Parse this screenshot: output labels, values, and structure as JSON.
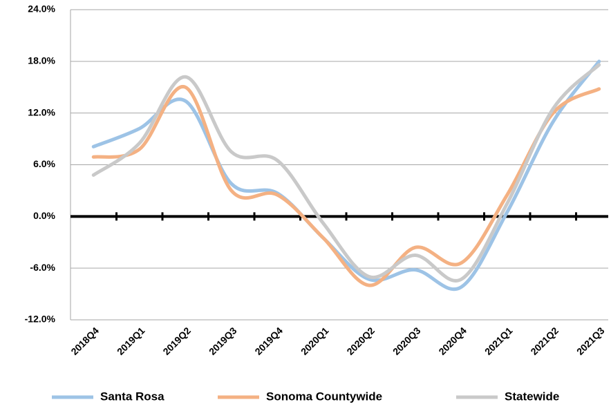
{
  "chart_data": {
    "type": "line",
    "categories": [
      "2018Q4",
      "2019Q1",
      "2019Q2",
      "2019Q3",
      "2019Q4",
      "2020Q1",
      "2020Q2",
      "2020Q3",
      "2020Q4",
      "2021Q1",
      "2021Q2",
      "2021Q3"
    ],
    "series": [
      {
        "name": "Santa Rosa",
        "color": "#9dc3e6",
        "values": [
          8.1,
          10.2,
          13.4,
          3.8,
          2.7,
          -2.5,
          -7.3,
          -6.2,
          -8.2,
          0.5,
          11.0,
          18.0
        ]
      },
      {
        "name": "Sonoma Countywide",
        "color": "#f4b183",
        "values": [
          6.9,
          7.8,
          15.0,
          3.0,
          2.5,
          -2.5,
          -8.0,
          -3.6,
          -5.4,
          2.5,
          12.0,
          14.8
        ]
      },
      {
        "name": "Statewide",
        "color": "#c9c9c9",
        "values": [
          4.8,
          8.5,
          16.2,
          7.5,
          6.5,
          -0.8,
          -7.0,
          -4.5,
          -7.3,
          1.5,
          12.5,
          17.6
        ]
      }
    ],
    "ylim": [
      -12,
      24
    ],
    "yticks": [
      {
        "value": -12,
        "label": "-12.0%"
      },
      {
        "value": -6,
        "label": "-6.0%"
      },
      {
        "value": 0,
        "label": "0.0%"
      },
      {
        "value": 6,
        "label": "6.0%"
      },
      {
        "value": 12,
        "label": "12.0%"
      },
      {
        "value": 18,
        "label": "18.0%"
      },
      {
        "value": 24,
        "label": "24.0%"
      }
    ],
    "grid": true,
    "legend": "bottom"
  }
}
